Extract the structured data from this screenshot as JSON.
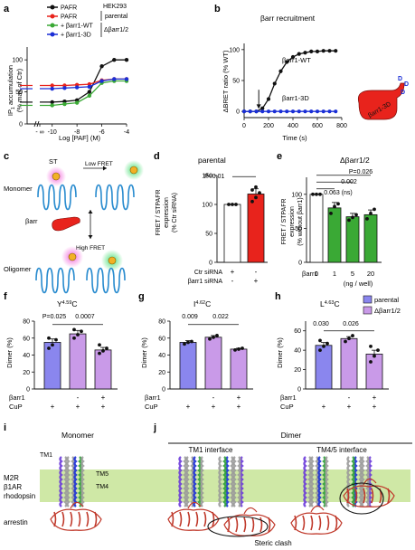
{
  "panels": {
    "a": {
      "letter": "a",
      "legend": [
        "PAFR",
        "PAFR",
        "+ βarr1-WT",
        "+ βarr1-3D"
      ],
      "group_labels": [
        "HEK293",
        "parental",
        "Δβarr1/2"
      ],
      "ylabel_1": "IP",
      "ylabel_sub": "1",
      "ylabel_2": " accumulation",
      "ylabel_3": "(% max of Ctr)",
      "xlabel": "Log [PAF] (M)",
      "yticks": [
        "0",
        "50",
        "100"
      ],
      "xticks": [
        "- ∞",
        "-10",
        "-8",
        "-6",
        "-4"
      ]
    },
    "b": {
      "letter": "b",
      "title": "βarr recruitment",
      "ylabel": "ΔBRET ratio (% WT)",
      "xlabel": "Time (s)",
      "yticks": [
        "0",
        "50",
        "100"
      ],
      "xticks": [
        "0",
        "200",
        "400",
        "600",
        "800"
      ],
      "label_wt": "βarr1-WT",
      "label_3d": "βarr1-3D",
      "cartoon_label": "βarr1-3D",
      "cartoon_d": [
        "D",
        "D",
        "D"
      ]
    },
    "c": {
      "letter": "c",
      "monomer": "Monomer",
      "st": "ST",
      "low_fret": "Low FRET",
      "barr": "βarr",
      "high_fret": "High FRET",
      "oligomer": "Oligomer"
    },
    "d": {
      "letter": "d",
      "title": "parental",
      "ylabel_1": "FRET / STPAFR",
      "ylabel_2": "expression",
      "ylabel_3": "(% Ctr siRNA)",
      "yticks": [
        "0",
        "50",
        "100",
        "150"
      ],
      "pvalue": "P=0.01",
      "row_labels": [
        "Ctr siRNA",
        "βarr1 siRNA"
      ],
      "row_signs": [
        [
          "+",
          "-"
        ],
        [
          "-",
          "+"
        ]
      ]
    },
    "e": {
      "letter": "e",
      "title": "Δβarr1/2",
      "ylabel_1": "FRET / STPAFR",
      "ylabel_2": "expression",
      "ylabel_3": "(% without βarr1)",
      "yticks": [
        "0",
        "50",
        "100"
      ],
      "pvalues": [
        "P=0.026",
        "0.002",
        "0.063 (ns)"
      ],
      "row_label": "βarr1",
      "x_values": [
        "0",
        "1",
        "5",
        "20"
      ],
      "unit": "(ng / well)"
    },
    "f": {
      "letter": "f",
      "title_main": "Y",
      "title_sup": "4.59",
      "title_end": "C",
      "ylabel": "Dimer (%)",
      "yticks": [
        "0",
        "20",
        "40",
        "60",
        "80"
      ],
      "pvalues": [
        "P=0.025",
        "0.0007"
      ],
      "row_labels": [
        "βarr1",
        "CuP"
      ],
      "barr_signs": [
        "",
        "-",
        "+"
      ],
      "cup_signs": [
        "+",
        "+",
        "+"
      ]
    },
    "g": {
      "letter": "g",
      "title_main": "I",
      "title_sup": "4.62",
      "title_end": "C",
      "ylabel": "Dimer (%)",
      "yticks": [
        "0",
        "20",
        "40",
        "60",
        "80"
      ],
      "pvalues": [
        "0.009",
        "0.022"
      ],
      "row_labels": [
        "βarr1",
        "CuP"
      ],
      "barr_signs": [
        "",
        "-",
        "+"
      ],
      "cup_signs": [
        "+",
        "+",
        "+"
      ]
    },
    "h": {
      "letter": "h",
      "title_main": "L",
      "title_sup": "4.63",
      "title_end": "C",
      "ylabel": "Dimer (%)",
      "yticks": [
        "0",
        "20",
        "40",
        "60"
      ],
      "pvalues": [
        "0.030",
        "0.026"
      ],
      "row_labels": [
        "βarr1",
        "CuP"
      ],
      "barr_signs": [
        "",
        "-",
        "+"
      ],
      "cup_signs": [
        "+",
        "+",
        "+"
      ],
      "legend": [
        "parental",
        "Δβarr1/2"
      ]
    },
    "i": {
      "letter": "i",
      "title": "Monomer",
      "labels": [
        "M2R",
        "β1AR",
        "rhodopsin",
        "arrestin"
      ],
      "tm_labels": [
        "TM1",
        "TM5",
        "TM4"
      ]
    },
    "j": {
      "letter": "j",
      "title": "Dimer",
      "sub_left": "TM1 interface",
      "sub_right": "TM4/5 interface",
      "clash": "Steric clash"
    }
  },
  "colors": {
    "black": "#111111",
    "red": "#e8231c",
    "green": "#3aa935",
    "blue": "#1b2fd6",
    "parental": "#8a86ee",
    "delta": "#c99ae8",
    "band": "#cfe8a6",
    "arrestin": "#d9534f"
  },
  "chart_data": [
    {
      "panel": "a",
      "type": "line",
      "x": [
        -11,
        -10,
        -9,
        -8,
        -7,
        -6,
        -5,
        -4
      ],
      "series": [
        {
          "name": "PAFR",
          "values": [
            34,
            34,
            35,
            37,
            50,
            90,
            100,
            100
          ]
        },
        {
          "name": "PAFR",
          "values": [
            60,
            60,
            60,
            61,
            62,
            68,
            70,
            70
          ]
        },
        {
          "name": "+ βarr1-WT",
          "values": [
            29,
            29,
            31,
            33,
            44,
            64,
            67,
            67
          ]
        },
        {
          "name": "+ βarr1-3D",
          "values": [
            55,
            55,
            56,
            57,
            58,
            67,
            70,
            70
          ]
        }
      ],
      "ylim": [
        0,
        120
      ]
    },
    {
      "panel": "b",
      "type": "line",
      "x": [
        0,
        50,
        100,
        150,
        200,
        250,
        300,
        350,
        400,
        450,
        500,
        550,
        600,
        650,
        700,
        750
      ],
      "series": [
        {
          "name": "βarr1-WT",
          "values": [
            0,
            0,
            0,
            5,
            20,
            45,
            65,
            80,
            88,
            93,
            95,
            97,
            97,
            98,
            98,
            98
          ]
        },
        {
          "name": "βarr1-3D",
          "values": [
            0,
            0,
            0,
            0,
            0,
            0,
            0,
            0,
            0,
            0,
            0,
            0,
            0,
            0,
            0,
            0
          ]
        }
      ],
      "ylim": [
        -10,
        110
      ]
    },
    {
      "panel": "d",
      "type": "bar",
      "categories": [
        "Ctr siRNA",
        "βarr1 siRNA"
      ],
      "values": [
        100,
        118
      ],
      "ylim": [
        0,
        150
      ]
    },
    {
      "panel": "e",
      "type": "bar",
      "categories": [
        "0",
        "1",
        "5",
        "20"
      ],
      "values": [
        100,
        80,
        67,
        70
      ],
      "ylim": [
        0,
        125
      ]
    },
    {
      "panel": "f",
      "type": "bar",
      "categories": [
        "parental",
        "Δβarr1/2 -",
        "Δβarr1/2 +"
      ],
      "values": [
        55,
        65,
        46
      ],
      "ylim": [
        0,
        80
      ]
    },
    {
      "panel": "g",
      "type": "bar",
      "categories": [
        "parental",
        "Δβarr1/2 -",
        "Δβarr1/2 +"
      ],
      "values": [
        55,
        61,
        47
      ],
      "ylim": [
        0,
        80
      ]
    },
    {
      "panel": "h",
      "type": "bar",
      "categories": [
        "parental",
        "Δβarr1/2 -",
        "Δβarr1/2 +"
      ],
      "values": [
        45,
        52,
        36
      ],
      "ylim": [
        0,
        70
      ]
    }
  ]
}
